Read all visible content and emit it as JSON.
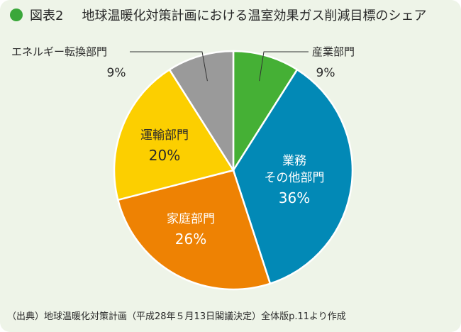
{
  "header": {
    "figure_label": "図表2",
    "title": "地球温暖化対策計画における温室効果ガス削減目標のシェア",
    "dot_color": "#3aa73a"
  },
  "chart_data": {
    "type": "pie",
    "title": "地球温暖化対策計画における温室効果ガス削減目標のシェア",
    "slices": [
      {
        "label_lines": [
          "産業部門"
        ],
        "value": 9,
        "value_text": "9%",
        "color": "#45b035"
      },
      {
        "label_lines": [
          "業務",
          "その他部門"
        ],
        "value": 36,
        "value_text": "36%",
        "color": "#0289b6"
      },
      {
        "label_lines": [
          "家庭部門"
        ],
        "value": 26,
        "value_text": "26%",
        "color": "#ee8203"
      },
      {
        "label_lines": [
          "運輸部門"
        ],
        "value": 20,
        "value_text": "20%",
        "color": "#fccf00"
      },
      {
        "label_lines": [
          "エネルギー転換部門"
        ],
        "value": 9,
        "value_text": "9%",
        "color": "#9a9a9a"
      }
    ],
    "start": "12 o'clock",
    "direction": "clockwise"
  },
  "footer": {
    "source": "（出典）地球温暖化対策計画（平成28年５月13日閣議決定）全体版p.11より作成"
  }
}
